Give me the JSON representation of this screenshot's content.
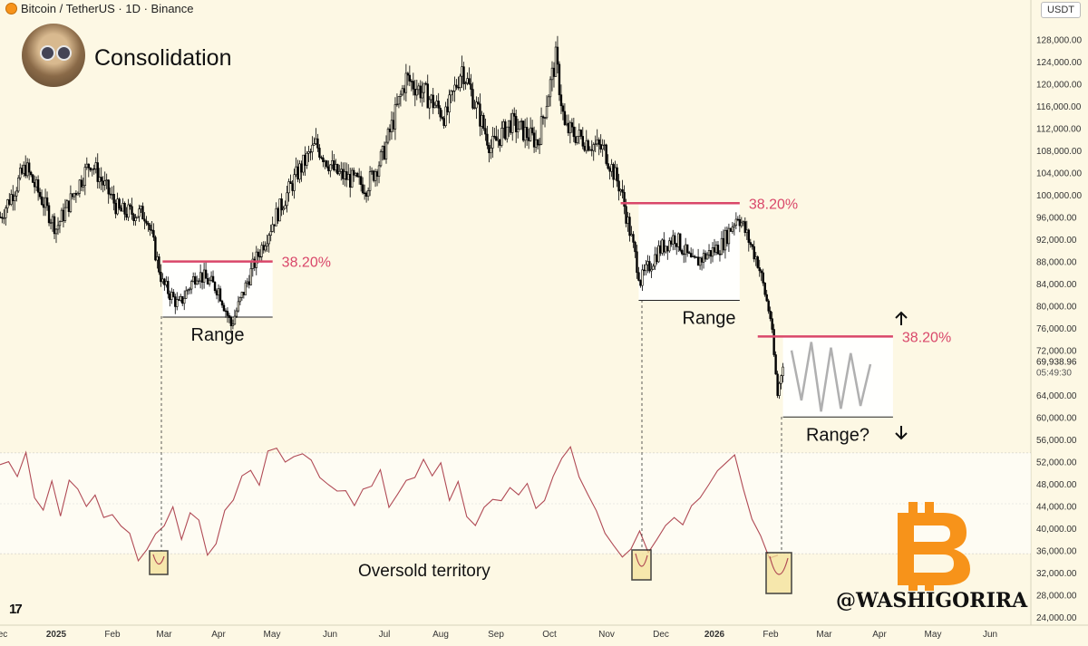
{
  "header": {
    "symbol": "Bitcoin / TetherUS · 1D · Binance",
    "currency": "USDT"
  },
  "title": "Consolidation",
  "watermark": "@WASHIGORIRA",
  "colors": {
    "background": "#fdf8e4",
    "candle": "#000000",
    "rsi": "#b04a55",
    "fib": "#d9476a",
    "projection": "#b0b0b0",
    "highlight": "#f4e29a"
  },
  "icons": {
    "logo": "tradingview-logo-icon",
    "bitcoin": "bitcoin-icon",
    "avatar": "avatar"
  },
  "chart_data": [
    {
      "type": "candlestick",
      "title": "",
      "y_scale": "linear",
      "ylim": [
        22000,
        132000
      ],
      "y_ticks": [
        "128,000.00",
        "124,000.00",
        "120,000.00",
        "116,000.00",
        "112,000.00",
        "108,000.00",
        "104,000.00",
        "100,000.00",
        "96,000.00",
        "92,000.00",
        "88,000.00",
        "84,000.00",
        "80,000.00",
        "76,000.00",
        "72,000.00",
        "68,000.00",
        "64,000.00",
        "60,000.00",
        "56,000.00",
        "52,000.00",
        "48,000.00",
        "44,000.00",
        "40,000.00",
        "36,000.00",
        "32,000.00",
        "28,000.00",
        "24,000.00"
      ],
      "x_ticks": [
        "ec",
        "2025",
        "Feb",
        "Mar",
        "Apr",
        "May",
        "Jun",
        "Jul",
        "Aug",
        "Sep",
        "Oct",
        "Nov",
        "Dec",
        "2026",
        "Feb",
        "Mar",
        "Apr",
        "May",
        "Jun"
      ],
      "price_path": [
        [
          "2024-12-01",
          96000
        ],
        [
          "2024-12-15",
          105000
        ],
        [
          "2025-01-01",
          94000
        ],
        [
          "2025-01-20",
          106000
        ],
        [
          "2025-02-05",
          97000
        ],
        [
          "2025-02-20",
          96500
        ],
        [
          "2025-03-01",
          84000
        ],
        [
          "2025-03-10",
          80000
        ],
        [
          "2025-03-20",
          86000
        ],
        [
          "2025-04-01",
          83000
        ],
        [
          "2025-04-08",
          76500
        ],
        [
          "2025-04-20",
          87000
        ],
        [
          "2025-05-01",
          95000
        ],
        [
          "2025-05-15",
          104000
        ],
        [
          "2025-05-25",
          109000
        ],
        [
          "2025-06-05",
          104000
        ],
        [
          "2025-06-22",
          101500
        ],
        [
          "2025-07-01",
          107000
        ],
        [
          "2025-07-14",
          121000
        ],
        [
          "2025-07-25",
          118000
        ],
        [
          "2025-08-05",
          114000
        ],
        [
          "2025-08-14",
          123000
        ],
        [
          "2025-08-30",
          108500
        ],
        [
          "2025-09-10",
          113000
        ],
        [
          "2025-09-25",
          109500
        ],
        [
          "2025-10-05",
          124500
        ],
        [
          "2025-10-10",
          112000
        ],
        [
          "2025-10-20",
          110000
        ],
        [
          "2025-11-01",
          108000
        ],
        [
          "2025-11-10",
          101000
        ],
        [
          "2025-11-21",
          84500
        ],
        [
          "2025-12-01",
          90000
        ],
        [
          "2025-12-10",
          92500
        ],
        [
          "2025-12-20",
          87500
        ],
        [
          "2026-01-05",
          91000
        ],
        [
          "2026-01-14",
          96500
        ],
        [
          "2026-01-25",
          88000
        ],
        [
          "2026-02-01",
          78000
        ],
        [
          "2026-02-05",
          64000
        ],
        [
          "2026-02-08",
          69938.96
        ]
      ],
      "current_price": "69,938.96",
      "countdown": "05:49:30",
      "fib_levels": [
        {
          "label": "38.20%",
          "price": 88000,
          "from": "2025-03-01",
          "to": "2025-05-01"
        },
        {
          "label": "38.20%",
          "price": 98500,
          "from": "2025-11-10",
          "to": "2026-01-15"
        },
        {
          "label": "38.20%",
          "price": 74500,
          "from": "2026-01-25",
          "to": "2026-04-10"
        }
      ],
      "ranges": [
        {
          "label": "Range",
          "top": 88000,
          "bottom": 78000,
          "from": "2025-03-01",
          "to": "2025-05-01"
        },
        {
          "label": "Range",
          "top": 98500,
          "bottom": 81000,
          "from": "2025-11-20",
          "to": "2026-01-15"
        },
        {
          "label": "Range?",
          "top": 74500,
          "bottom": 60000,
          "from": "2026-02-08",
          "to": "2026-04-10"
        }
      ],
      "projection_zigzag": [
        72000,
        63000,
        73500,
        61000,
        72500,
        61500,
        71500,
        62000,
        69500
      ]
    },
    {
      "type": "line",
      "title": "",
      "annotation": "Oversold territory",
      "oversold_boxes": [
        "2025-03-02",
        "2025-11-21",
        "2026-02-05"
      ],
      "series": [
        {
          "values": [
            64,
            66,
            61,
            69,
            52,
            48,
            58,
            45,
            60,
            55,
            49,
            52,
            44,
            46,
            40,
            38,
            28,
            31,
            38,
            42,
            48,
            36,
            45,
            43,
            30,
            33,
            47,
            52,
            60,
            63,
            58,
            70,
            72,
            65,
            68,
            70,
            66,
            60,
            58,
            54,
            55,
            50,
            55,
            57,
            62,
            48,
            54,
            58,
            60,
            68,
            60,
            66,
            52,
            58,
            45,
            40,
            48,
            52,
            50,
            56,
            54,
            57,
            48,
            52,
            60,
            68,
            71,
            60,
            54,
            46,
            38,
            34,
            28,
            32,
            40,
            30,
            36,
            40,
            44,
            42,
            48,
            52,
            58,
            62,
            66,
            70,
            55,
            44,
            36,
            28,
            30
          ]
        }
      ]
    }
  ]
}
